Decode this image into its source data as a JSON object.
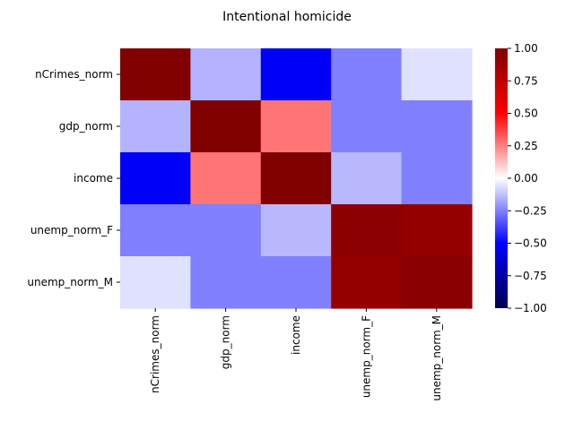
{
  "chart_data": {
    "type": "heatmap",
    "title": "Intentional homicide",
    "xlabel": "",
    "ylabel": "",
    "rows": [
      "nCrimes_norm",
      "gdp_norm",
      "income",
      "unemp_norm_F",
      "unemp_norm_M"
    ],
    "columns": [
      "nCrimes_norm",
      "gdp_norm",
      "income",
      "unemp_norm_F",
      "unemp_norm_M"
    ],
    "values": [
      [
        1.0,
        -0.15,
        -0.52,
        -0.25,
        -0.06
      ],
      [
        -0.15,
        1.0,
        0.27,
        -0.25,
        -0.25
      ],
      [
        -0.52,
        0.27,
        1.0,
        -0.14,
        -0.25
      ],
      [
        -0.25,
        -0.25,
        -0.14,
        0.95,
        0.92
      ],
      [
        -0.06,
        -0.25,
        -0.25,
        0.92,
        0.96
      ]
    ],
    "colormap": "seismic",
    "vmin": -1.0,
    "vmax": 1.0,
    "colorbar_ticks": [
      "1.00",
      "0.75",
      "0.50",
      "0.25",
      "0.00",
      "−0.25",
      "−0.50",
      "−0.75",
      "−1.00"
    ],
    "colorbar_tick_values": [
      1.0,
      0.75,
      0.5,
      0.25,
      0.0,
      -0.25,
      -0.5,
      -0.75,
      -1.0
    ],
    "legend": "colorbar-right"
  }
}
